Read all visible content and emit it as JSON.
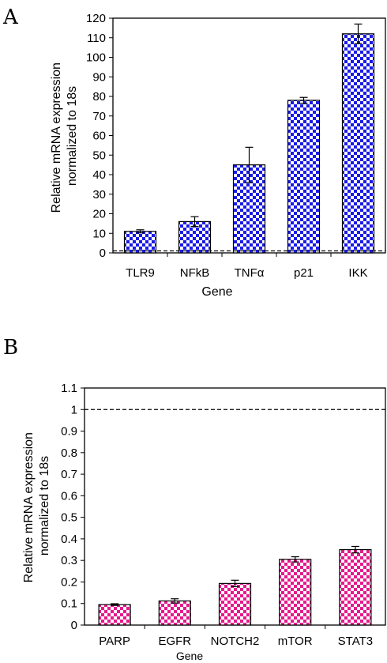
{
  "chart_data": [
    {
      "panel_label": "A",
      "type": "bar",
      "categories": [
        "TLR9",
        "NFkB",
        "TNFα",
        "p21",
        "IKK"
      ],
      "values": [
        11,
        16,
        45,
        78,
        112
      ],
      "errors": [
        0.8,
        2.5,
        9,
        1.5,
        5
      ],
      "xlabel": "Gene",
      "ylabel_lines": [
        "Relative mRNA expression",
        "normalized to 18s"
      ],
      "ylim": [
        0,
        120
      ],
      "ytick_step": 10,
      "yticks": [
        "0",
        "10",
        "20",
        "30",
        "40",
        "50",
        "60",
        "70",
        "80",
        "90",
        "100",
        "110",
        "120"
      ],
      "reference_line": 1,
      "bar_color": "#1a1ae6",
      "pattern": "checkerboard",
      "grid": false
    },
    {
      "panel_label": "B",
      "type": "bar",
      "categories": [
        "PARP",
        "EGFR",
        "NOTCH2",
        "mTOR",
        "STAT3"
      ],
      "values": [
        0.095,
        0.112,
        0.193,
        0.305,
        0.35
      ],
      "errors": [
        0.004,
        0.01,
        0.015,
        0.012,
        0.015
      ],
      "xlabel": "Gene",
      "ylabel_lines": [
        "Relative mRNA expression",
        "normalized to 18s"
      ],
      "ylim": [
        0,
        1.1
      ],
      "ytick_step": 0.1,
      "yticks": [
        "0",
        "0.1",
        "0.2",
        "0.3",
        "0.4",
        "0.5",
        "0.6",
        "0.7",
        "0.8",
        "0.9",
        "1",
        "1.1"
      ],
      "reference_line": 1,
      "bar_color": "#e6198c",
      "pattern": "checkerboard",
      "grid": false
    }
  ]
}
